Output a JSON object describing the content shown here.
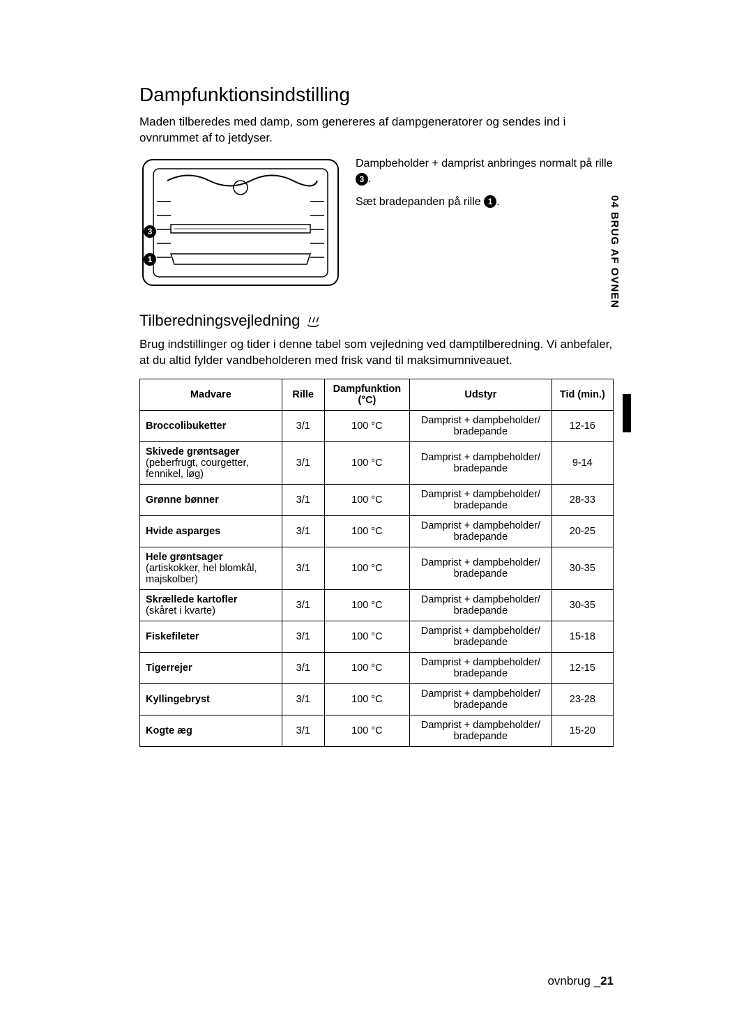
{
  "sideTab": "04 BRUG AF OVNEN",
  "heading": "Dampfunktionsindstilling",
  "intro": "Maden tilberedes med damp, som genereres af dampgeneratorer og sendes ind i ovnrummet af to jetdyser.",
  "figureText1a": "Dampbeholder + damprist anbringes normalt på rille ",
  "figureText1b": ".",
  "circle3": "3",
  "figureText2a": "Sæt bradepanden på rille ",
  "figureText2b": ".",
  "circle1": "1",
  "subHeading": "Tilberedningsvejledning",
  "subIntro": "Brug indstillinger og tider i denne tabel som vejledning ved damptilberedning. Vi anbefaler, at du altid fylder vandbeholderen med frisk vand til maksimumniveauet.",
  "table": {
    "headers": {
      "c1": "Madvare",
      "c2": "Rille",
      "c3": "Dampfunktion (°C)",
      "c4": "Udstyr",
      "c5": "Tid (min.)"
    },
    "colWidths": [
      "30%",
      "9%",
      "18%",
      "30%",
      "13%"
    ],
    "rows": [
      {
        "foodBold": "Broccolibuketter",
        "foodSub": "",
        "shelf": "3/1",
        "temp": "100 °C",
        "equip": "Damprist + dampbeholder/ bradepande",
        "time": "12-16"
      },
      {
        "foodBold": "Skivede grøntsager",
        "foodSub": "(peberfrugt, courgetter, fennikel, løg)",
        "shelf": "3/1",
        "temp": "100 °C",
        "equip": "Damprist + dampbeholder/ bradepande",
        "time": "9-14"
      },
      {
        "foodBold": "Grønne bønner",
        "foodSub": "",
        "shelf": "3/1",
        "temp": "100 °C",
        "equip": "Damprist + dampbeholder/ bradepande",
        "time": "28-33"
      },
      {
        "foodBold": "Hvide asparges",
        "foodSub": "",
        "shelf": "3/1",
        "temp": "100 °C",
        "equip": "Damprist + dampbeholder/ bradepande",
        "time": "20-25"
      },
      {
        "foodBold": "Hele grøntsager",
        "foodSub": "(artiskokker, hel blomkål, majskolber)",
        "shelf": "3/1",
        "temp": "100 °C",
        "equip": "Damprist + dampbeholder/ bradepande",
        "time": "30-35"
      },
      {
        "foodBold": "Skrællede kartofler",
        "foodSub": "(skåret i kvarte)",
        "shelf": "3/1",
        "temp": "100 °C",
        "equip": "Damprist + dampbeholder/ bradepande",
        "time": "30-35"
      },
      {
        "foodBold": "Fiskefileter",
        "foodSub": "",
        "shelf": "3/1",
        "temp": "100 °C",
        "equip": "Damprist + dampbeholder/ bradepande",
        "time": "15-18"
      },
      {
        "foodBold": "Tigerrejer",
        "foodSub": "",
        "shelf": "3/1",
        "temp": "100 °C",
        "equip": "Damprist + dampbeholder/ bradepande",
        "time": "12-15"
      },
      {
        "foodBold": "Kyllingebryst",
        "foodSub": "",
        "shelf": "3/1",
        "temp": "100 °C",
        "equip": "Damprist + dampbeholder/ bradepande",
        "time": "23-28"
      },
      {
        "foodBold": "Kogte æg",
        "foodSub": "",
        "shelf": "3/1",
        "temp": "100 °C",
        "equip": "Damprist + dampbeholder/ bradepande",
        "time": "15-20"
      }
    ]
  },
  "footerText": "ovnbrug _",
  "pageNum": "21",
  "colors": {
    "text": "#000000",
    "bg": "#ffffff",
    "border": "#000000"
  }
}
